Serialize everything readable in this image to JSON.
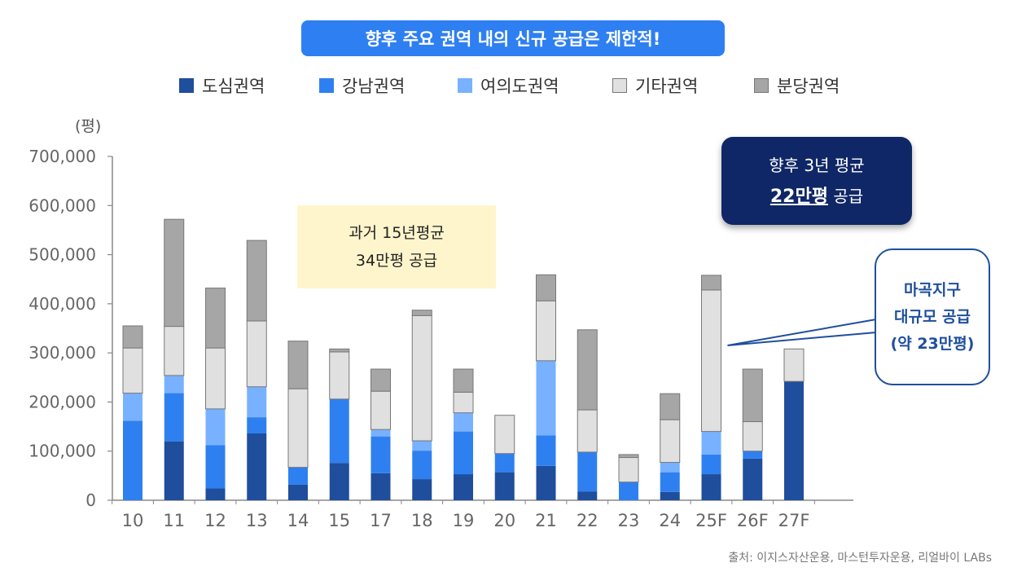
{
  "header": {
    "title": "향후 주요 권역 내의 신규 공급은 제한적!"
  },
  "unit_label": "(평)",
  "legend": [
    {
      "label": "도심권역",
      "color": "#1f4e9c"
    },
    {
      "label": "강남권역",
      "color": "#2e80f0"
    },
    {
      "label": "여의도권역",
      "color": "#78b1ff"
    },
    {
      "label": "기타권역",
      "color": "#e0e0e0"
    },
    {
      "label": "분당권역",
      "color": "#a6a6a6"
    }
  ],
  "notes": {
    "past_avg_line1": "과거 15년평균",
    "past_avg_line2": "34만평 공급",
    "future_avg_line1": "향후 3년 평균",
    "future_avg_value": "22만평",
    "future_avg_suffix": "공급",
    "callout_line1": "마곡지구",
    "callout_line2": "대규모 공급",
    "callout_line3": "(약 23만평)"
  },
  "source": "출처: 이지스자산운용, 마스턴투자운용, 리얼바이 LABs",
  "chart_data": {
    "type": "bar",
    "stacked": true,
    "categories": [
      "10",
      "11",
      "12",
      "13",
      "14",
      "15",
      "17",
      "18",
      "19",
      "20",
      "21",
      "22",
      "23",
      "24",
      "25F",
      "26F",
      "27F"
    ],
    "series": [
      {
        "name": "도심권역",
        "color": "#1f4e9c",
        "values": [
          0,
          120000,
          24000,
          136000,
          32000,
          76000,
          55000,
          43000,
          53000,
          57000,
          70000,
          18000,
          0,
          17000,
          53000,
          85000,
          242000
        ]
      },
      {
        "name": "강남권역",
        "color": "#2e80f0",
        "values": [
          162000,
          98000,
          88000,
          33000,
          35000,
          130000,
          75000,
          58000,
          87000,
          38000,
          62000,
          80000,
          37000,
          40000,
          40000,
          15000,
          0
        ]
      },
      {
        "name": "여의도권역",
        "color": "#78b1ff",
        "values": [
          56000,
          36000,
          74000,
          62000,
          0,
          0,
          14000,
          20000,
          38000,
          0,
          152000,
          0,
          0,
          20000,
          47000,
          0,
          0
        ]
      },
      {
        "name": "기타권역",
        "color": "#e0e0e0",
        "values": [
          92000,
          100000,
          124000,
          134000,
          160000,
          96000,
          78000,
          255000,
          42000,
          78000,
          122000,
          86000,
          50000,
          87000,
          288000,
          60000,
          66000
        ]
      },
      {
        "name": "분당권역",
        "color": "#a6a6a6",
        "values": [
          45000,
          218000,
          122000,
          164000,
          97000,
          6000,
          45000,
          11000,
          47000,
          0,
          53000,
          163000,
          6000,
          53000,
          30000,
          107000,
          0
        ]
      }
    ],
    "yticks": [
      "0",
      "100,000",
      "200,000",
      "300,000",
      "400,000",
      "500,000",
      "600,000",
      "700,000"
    ],
    "ylim": [
      0,
      700000
    ]
  }
}
